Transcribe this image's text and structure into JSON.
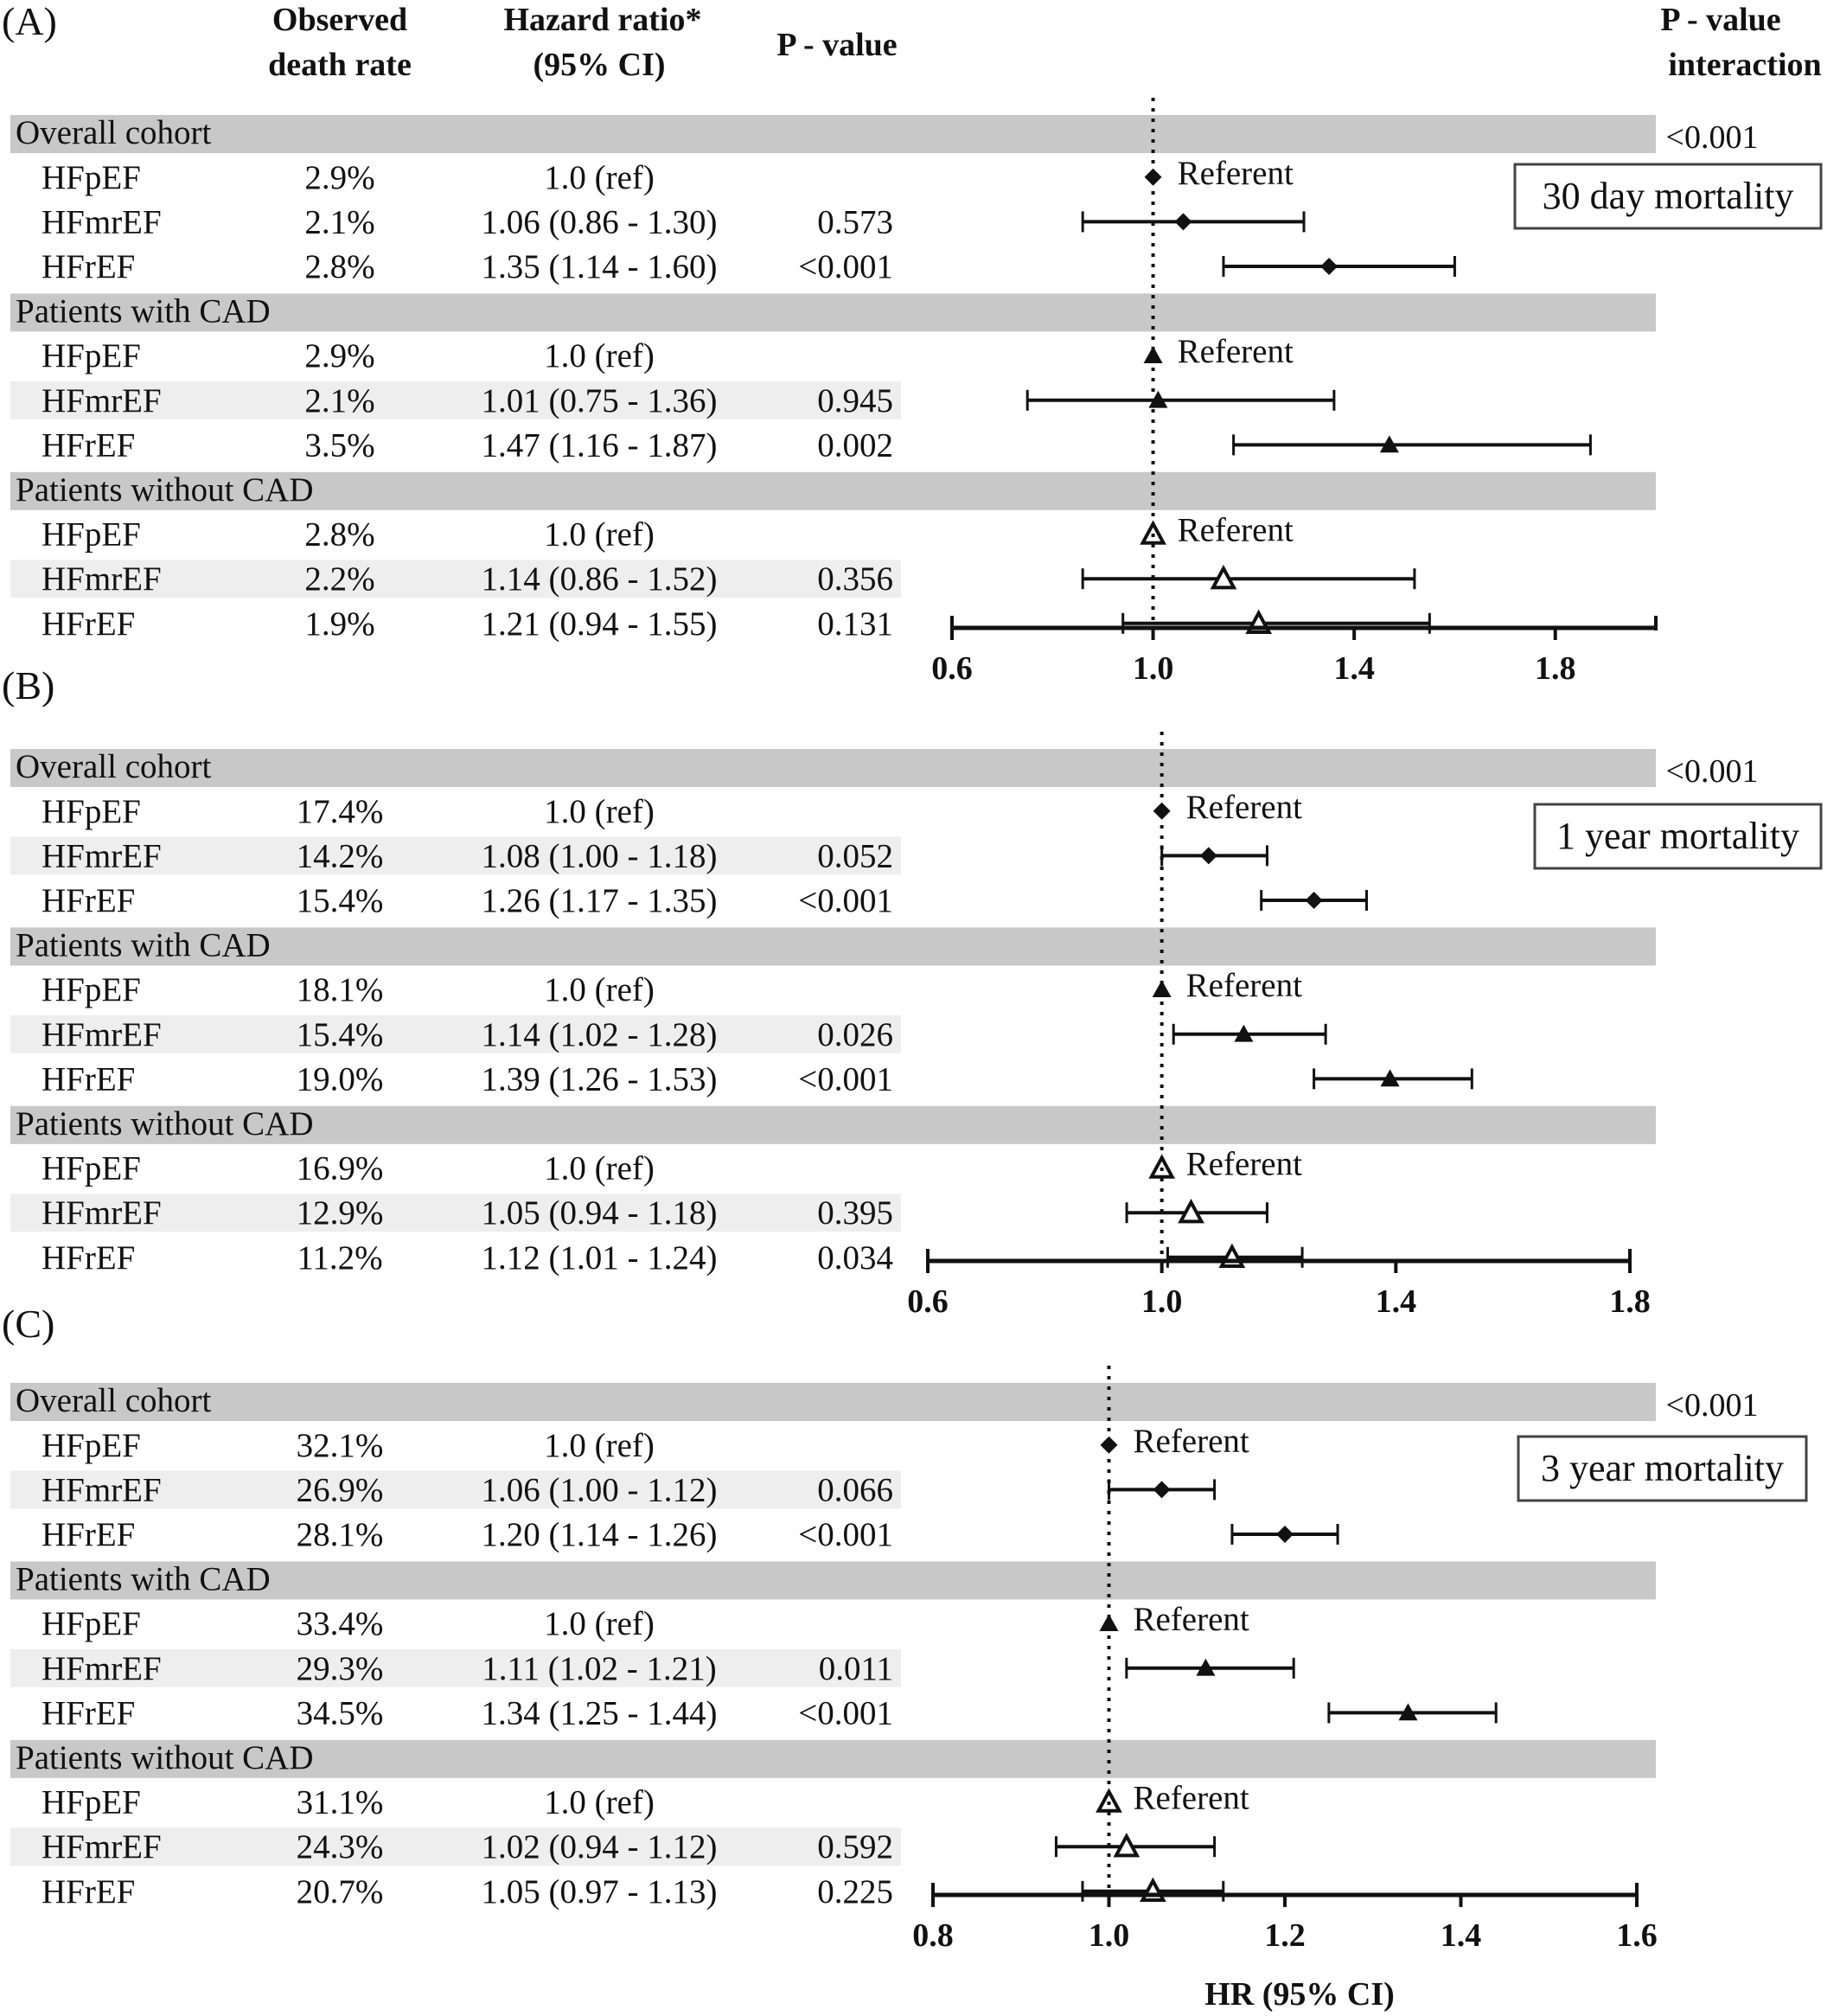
{
  "headers": {
    "observed": [
      "Observed",
      "death rate"
    ],
    "hazard": [
      "Hazard ratio*",
      "(95% CI)"
    ],
    "pvalue": "P - value",
    "pinteraction": [
      "P - value",
      "interaction"
    ]
  },
  "x_axis_label": "HR (95% CI)",
  "referent_label": "Referent",
  "chart_data": [
    {
      "type": "forest",
      "panel": "(A)",
      "title": "30 day mortality",
      "p_interaction": "<0.001",
      "xlim": [
        0.6,
        2.0
      ],
      "ticks": [
        0.6,
        1.0,
        1.4,
        1.8
      ],
      "groups": [
        {
          "name": "Overall cohort",
          "marker": "diamond",
          "rows": [
            {
              "label": "HFpEF",
              "rate": "2.9%",
              "hr_text": "1.0 (ref)",
              "p": "",
              "hr": 1.0,
              "lo": null,
              "hi": null,
              "ref": true
            },
            {
              "label": "HFmrEF",
              "rate": "2.1%",
              "hr_text": "1.06 (0.86 - 1.30)",
              "p": "0.573",
              "hr": 1.06,
              "lo": 0.86,
              "hi": 1.3,
              "ref": false
            },
            {
              "label": "HFrEF",
              "rate": "2.8%",
              "hr_text": "1.35 (1.14 - 1.60)",
              "p": "<0.001",
              "hr": 1.35,
              "lo": 1.14,
              "hi": 1.6,
              "ref": false
            }
          ]
        },
        {
          "name": "Patients with CAD",
          "marker": "triangle",
          "rows": [
            {
              "label": "HFpEF",
              "rate": "2.9%",
              "hr_text": "1.0 (ref)",
              "p": "",
              "hr": 1.0,
              "lo": null,
              "hi": null,
              "ref": true
            },
            {
              "label": "HFmrEF",
              "rate": "2.1%",
              "hr_text": "1.01 (0.75 - 1.36)",
              "p": "0.945",
              "hr": 1.01,
              "lo": 0.75,
              "hi": 1.36,
              "ref": false
            },
            {
              "label": "HFrEF",
              "rate": "3.5%",
              "hr_text": "1.47 (1.16 - 1.87)",
              "p": "0.002",
              "hr": 1.47,
              "lo": 1.16,
              "hi": 1.87,
              "ref": false
            }
          ]
        },
        {
          "name": "Patients without CAD",
          "marker": "triangle-open",
          "rows": [
            {
              "label": "HFpEF",
              "rate": "2.8%",
              "hr_text": "1.0 (ref)",
              "p": "",
              "hr": 1.0,
              "lo": null,
              "hi": null,
              "ref": true
            },
            {
              "label": "HFmrEF",
              "rate": "2.2%",
              "hr_text": "1.14 (0.86 - 1.52)",
              "p": "0.356",
              "hr": 1.14,
              "lo": 0.86,
              "hi": 1.52,
              "ref": false
            },
            {
              "label": "HFrEF",
              "rate": "1.9%",
              "hr_text": "1.21 (0.94 - 1.55)",
              "p": "0.131",
              "hr": 1.21,
              "lo": 0.94,
              "hi": 1.55,
              "ref": false
            }
          ]
        }
      ]
    },
    {
      "type": "forest",
      "panel": "(B)",
      "title": "1 year mortality",
      "p_interaction": "<0.001",
      "xlim": [
        0.6,
        1.8
      ],
      "ticks": [
        0.6,
        1.0,
        1.4,
        1.8
      ],
      "groups": [
        {
          "name": "Overall cohort",
          "marker": "diamond",
          "rows": [
            {
              "label": "HFpEF",
              "rate": "17.4%",
              "hr_text": "1.0 (ref)",
              "p": "",
              "hr": 1.0,
              "lo": null,
              "hi": null,
              "ref": true
            },
            {
              "label": "HFmrEF",
              "rate": "14.2%",
              "hr_text": "1.08 (1.00 - 1.18)",
              "p": "0.052",
              "hr": 1.08,
              "lo": 1.0,
              "hi": 1.18,
              "ref": false
            },
            {
              "label": "HFrEF",
              "rate": "15.4%",
              "hr_text": "1.26 (1.17 - 1.35)",
              "p": "<0.001",
              "hr": 1.26,
              "lo": 1.17,
              "hi": 1.35,
              "ref": false
            }
          ]
        },
        {
          "name": "Patients with CAD",
          "marker": "triangle",
          "rows": [
            {
              "label": "HFpEF",
              "rate": "18.1%",
              "hr_text": "1.0 (ref)",
              "p": "",
              "hr": 1.0,
              "lo": null,
              "hi": null,
              "ref": true
            },
            {
              "label": "HFmrEF",
              "rate": "15.4%",
              "hr_text": "1.14 (1.02 - 1.28)",
              "p": "0.026",
              "hr": 1.14,
              "lo": 1.02,
              "hi": 1.28,
              "ref": false
            },
            {
              "label": "HFrEF",
              "rate": "19.0%",
              "hr_text": "1.39 (1.26 - 1.53)",
              "p": "<0.001",
              "hr": 1.39,
              "lo": 1.26,
              "hi": 1.53,
              "ref": false
            }
          ]
        },
        {
          "name": "Patients without CAD",
          "marker": "triangle-open",
          "rows": [
            {
              "label": "HFpEF",
              "rate": "16.9%",
              "hr_text": "1.0 (ref)",
              "p": "",
              "hr": 1.0,
              "lo": null,
              "hi": null,
              "ref": true
            },
            {
              "label": "HFmrEF",
              "rate": "12.9%",
              "hr_text": "1.05 (0.94 - 1.18)",
              "p": "0.395",
              "hr": 1.05,
              "lo": 0.94,
              "hi": 1.18,
              "ref": false
            },
            {
              "label": "HFrEF",
              "rate": "11.2%",
              "hr_text": "1.12 (1.01 - 1.24)",
              "p": "0.034",
              "hr": 1.12,
              "lo": 1.01,
              "hi": 1.24,
              "ref": false
            }
          ]
        }
      ]
    },
    {
      "type": "forest",
      "panel": "(C)",
      "title": "3 year mortality",
      "p_interaction": "<0.001",
      "xlim": [
        0.8,
        1.6
      ],
      "ticks": [
        0.8,
        1.0,
        1.2,
        1.4,
        1.6
      ],
      "groups": [
        {
          "name": "Overall cohort",
          "marker": "diamond",
          "rows": [
            {
              "label": "HFpEF",
              "rate": "32.1%",
              "hr_text": "1.0 (ref)",
              "p": "",
              "hr": 1.0,
              "lo": null,
              "hi": null,
              "ref": true
            },
            {
              "label": "HFmrEF",
              "rate": "26.9%",
              "hr_text": "1.06 (1.00 - 1.12)",
              "p": "0.066",
              "hr": 1.06,
              "lo": 1.0,
              "hi": 1.12,
              "ref": false
            },
            {
              "label": "HFrEF",
              "rate": "28.1%",
              "hr_text": "1.20 (1.14 - 1.26)",
              "p": "<0.001",
              "hr": 1.2,
              "lo": 1.14,
              "hi": 1.26,
              "ref": false
            }
          ]
        },
        {
          "name": "Patients with CAD",
          "marker": "triangle",
          "rows": [
            {
              "label": "HFpEF",
              "rate": "33.4%",
              "hr_text": "1.0 (ref)",
              "p": "",
              "hr": 1.0,
              "lo": null,
              "hi": null,
              "ref": true
            },
            {
              "label": "HFmrEF",
              "rate": "29.3%",
              "hr_text": "1.11 (1.02 - 1.21)",
              "p": "0.011",
              "hr": 1.11,
              "lo": 1.02,
              "hi": 1.21,
              "ref": false
            },
            {
              "label": "HFrEF",
              "rate": "34.5%",
              "hr_text": "1.34 (1.25 - 1.44)",
              "p": "<0.001",
              "hr": 1.34,
              "lo": 1.25,
              "hi": 1.44,
              "ref": false
            }
          ]
        },
        {
          "name": "Patients without CAD",
          "marker": "triangle-open",
          "rows": [
            {
              "label": "HFpEF",
              "rate": "31.1%",
              "hr_text": "1.0 (ref)",
              "p": "",
              "hr": 1.0,
              "lo": null,
              "hi": null,
              "ref": true
            },
            {
              "label": "HFmrEF",
              "rate": "24.3%",
              "hr_text": "1.02 (0.94 - 1.12)",
              "p": "0.592",
              "hr": 1.02,
              "lo": 0.94,
              "hi": 1.12,
              "ref": false
            },
            {
              "label": "HFrEF",
              "rate": "20.7%",
              "hr_text": "1.05 (0.97 - 1.13)",
              "p": "0.225",
              "hr": 1.05,
              "lo": 0.97,
              "hi": 1.13,
              "ref": false
            }
          ]
        }
      ]
    }
  ]
}
